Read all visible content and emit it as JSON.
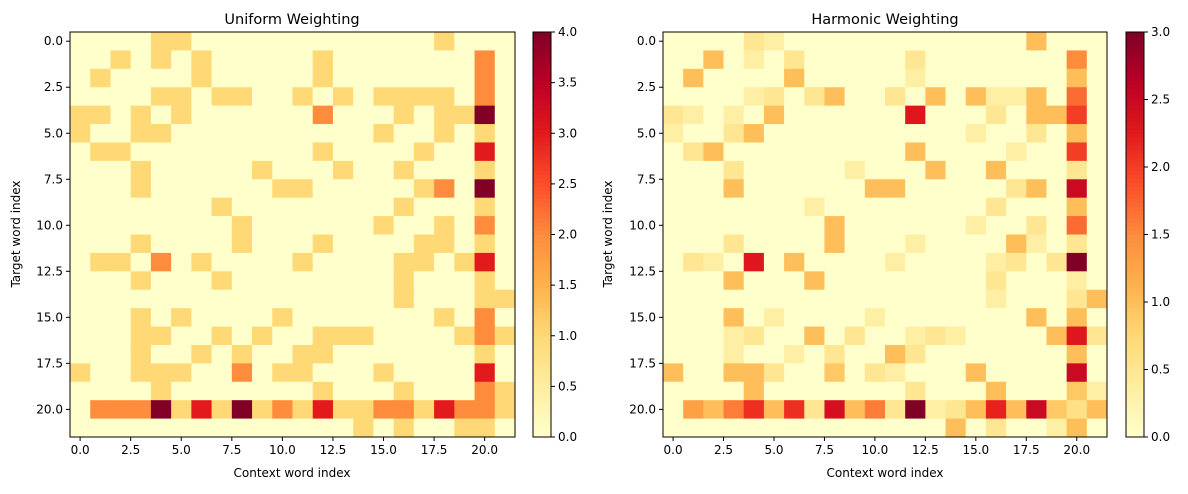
{
  "chart_data": [
    {
      "type": "heatmap",
      "title": "Uniform Weighting",
      "xlabel": "Context word index",
      "ylabel": "Target word index",
      "xticks": [
        0,
        2.5,
        5,
        7.5,
        10,
        12.5,
        15,
        17.5,
        20
      ],
      "yticks": [
        0,
        2.5,
        5,
        7.5,
        10,
        12.5,
        15,
        17.5,
        20
      ],
      "colormap": "YlOrRd",
      "vmin": 0,
      "vmax": 4,
      "colorbar_ticks": [
        0,
        0.5,
        1,
        1.5,
        2,
        2.5,
        3,
        3.5,
        4
      ],
      "cells": [
        {
          "row": 0,
          "vals": {
            "4": 1,
            "5": 1,
            "18": 1
          }
        },
        {
          "row": 1,
          "vals": {
            "2": 1,
            "4": 1,
            "6": 1,
            "12": 1,
            "20": 2
          }
        },
        {
          "row": 2,
          "vals": {
            "1": 1,
            "6": 1,
            "12": 1,
            "20": 2
          }
        },
        {
          "row": 3,
          "vals": {
            "4": 1,
            "5": 1,
            "7": 1,
            "8": 1,
            "11": 1,
            "13": 1,
            "15": 1,
            "16": 1,
            "17": 1,
            "18": 1,
            "20": 2
          }
        },
        {
          "row": 4,
          "vals": {
            "0": 1,
            "1": 1,
            "3": 1,
            "5": 1,
            "12": 2,
            "16": 1,
            "18": 1,
            "19": 1,
            "20": 4
          }
        },
        {
          "row": 5,
          "vals": {
            "0": 1,
            "3": 1,
            "4": 1,
            "15": 1,
            "18": 1,
            "20": 1
          }
        },
        {
          "row": 6,
          "vals": {
            "1": 1,
            "2": 1,
            "12": 1,
            "17": 1,
            "20": 3
          }
        },
        {
          "row": 7,
          "vals": {
            "3": 1,
            "9": 1,
            "13": 1,
            "16": 1,
            "20": 1
          }
        },
        {
          "row": 8,
          "vals": {
            "3": 1,
            "10": 1,
            "11": 1,
            "17": 1,
            "18": 2,
            "20": 4
          }
        },
        {
          "row": 9,
          "vals": {
            "7": 1,
            "16": 1,
            "20": 1
          }
        },
        {
          "row": 10,
          "vals": {
            "8": 1,
            "15": 1,
            "18": 1,
            "20": 2
          }
        },
        {
          "row": 11,
          "vals": {
            "3": 1,
            "8": 1,
            "12": 1,
            "17": 1,
            "18": 1,
            "20": 1
          }
        },
        {
          "row": 12,
          "vals": {
            "1": 1,
            "2": 1,
            "4": 2,
            "6": 1,
            "11": 1,
            "16": 1,
            "17": 1,
            "19": 1,
            "20": 3
          }
        },
        {
          "row": 13,
          "vals": {
            "3": 1,
            "7": 1,
            "16": 1,
            "20": 1
          }
        },
        {
          "row": 14,
          "vals": {
            "16": 1,
            "20": 1,
            "21": 1
          }
        },
        {
          "row": 15,
          "vals": {
            "3": 1,
            "5": 1,
            "10": 1,
            "18": 1,
            "20": 2
          }
        },
        {
          "row": 16,
          "vals": {
            "3": 1,
            "4": 1,
            "7": 1,
            "9": 1,
            "12": 1,
            "13": 1,
            "14": 1,
            "19": 1,
            "20": 2,
            "21": 1
          }
        },
        {
          "row": 17,
          "vals": {
            "3": 1,
            "6": 1,
            "8": 1,
            "11": 1,
            "12": 1,
            "20": 1
          }
        },
        {
          "row": 18,
          "vals": {
            "0": 1,
            "3": 1,
            "4": 1,
            "5": 1,
            "8": 2,
            "10": 1,
            "11": 1,
            "15": 1,
            "20": 3
          }
        },
        {
          "row": 19,
          "vals": {
            "4": 1,
            "12": 1,
            "16": 1,
            "20": 2,
            "21": 1
          }
        },
        {
          "row": 20,
          "vals": {
            "1": 2,
            "2": 2,
            "3": 2,
            "4": 4,
            "5": 1,
            "6": 3,
            "7": 1,
            "8": 4,
            "9": 1,
            "10": 2,
            "11": 1,
            "12": 3,
            "13": 1,
            "14": 1,
            "15": 2,
            "16": 2,
            "17": 1,
            "18": 3,
            "19": 2,
            "20": 2,
            "21": 1
          }
        },
        {
          "row": 21,
          "vals": {
            "14": 1,
            "16": 1,
            "19": 1,
            "20": 1
          }
        }
      ]
    },
    {
      "type": "heatmap",
      "title": "Harmonic Weighting",
      "xlabel": "Context word index",
      "ylabel": "Target word index",
      "xticks": [
        0,
        2.5,
        5,
        7.5,
        10,
        12.5,
        15,
        17.5,
        20
      ],
      "yticks": [
        0,
        2.5,
        5,
        7.5,
        10,
        12.5,
        15,
        17.5,
        20
      ],
      "colormap": "YlOrRd",
      "vmin": 0,
      "vmax": 3,
      "colorbar_ticks": [
        0,
        0.5,
        1,
        1.5,
        2,
        2.5,
        3
      ],
      "cells": [
        {
          "row": 0,
          "vals": {
            "4": 0.5,
            "5": 0.33,
            "18": 1
          }
        },
        {
          "row": 1,
          "vals": {
            "2": 1,
            "4": 0.33,
            "6": 0.5,
            "12": 0.5,
            "20": 1.5
          }
        },
        {
          "row": 2,
          "vals": {
            "1": 1,
            "6": 1,
            "12": 0.33,
            "20": 1
          }
        },
        {
          "row": 3,
          "vals": {
            "4": 0.33,
            "5": 0.5,
            "7": 0.5,
            "8": 1,
            "11": 0.5,
            "13": 1,
            "15": 1,
            "16": 0.33,
            "17": 0.33,
            "18": 1,
            "20": 1.7
          }
        },
        {
          "row": 4,
          "vals": {
            "0": 0.5,
            "1": 0.33,
            "3": 0.33,
            "5": 1,
            "12": 2.3,
            "16": 0.5,
            "18": 1,
            "19": 1,
            "20": 2
          }
        },
        {
          "row": 5,
          "vals": {
            "0": 0.33,
            "3": 0.5,
            "4": 1,
            "15": 0.33,
            "18": 0.5,
            "20": 1
          }
        },
        {
          "row": 6,
          "vals": {
            "1": 0.5,
            "2": 1,
            "12": 1,
            "17": 0.33,
            "20": 2
          }
        },
        {
          "row": 7,
          "vals": {
            "3": 0.5,
            "9": 0.33,
            "13": 1,
            "16": 1,
            "20": 0.5
          }
        },
        {
          "row": 8,
          "vals": {
            "3": 1,
            "10": 1,
            "11": 1,
            "17": 0.5,
            "18": 1,
            "20": 2.5
          }
        },
        {
          "row": 9,
          "vals": {
            "7": 0.33,
            "16": 0.5,
            "20": 1
          }
        },
        {
          "row": 10,
          "vals": {
            "8": 1,
            "15": 0.33,
            "18": 0.5,
            "20": 1.7
          }
        },
        {
          "row": 11,
          "vals": {
            "3": 0.5,
            "8": 1,
            "12": 0.33,
            "17": 1,
            "18": 0.33,
            "20": 0.5
          }
        },
        {
          "row": 12,
          "vals": {
            "1": 0.5,
            "2": 0.33,
            "4": 2.3,
            "6": 1,
            "11": 0.33,
            "16": 0.33,
            "17": 0.5,
            "19": 0.5,
            "20": 3
          }
        },
        {
          "row": 13,
          "vals": {
            "3": 1,
            "7": 1,
            "16": 0.5,
            "20": 0.33
          }
        },
        {
          "row": 14,
          "vals": {
            "16": 0.33,
            "20": 0.5,
            "21": 1
          }
        },
        {
          "row": 15,
          "vals": {
            "3": 1,
            "5": 0.33,
            "10": 0.33,
            "18": 1,
            "20": 1
          }
        },
        {
          "row": 16,
          "vals": {
            "3": 0.33,
            "4": 0.5,
            "7": 1,
            "9": 0.5,
            "12": 0.33,
            "13": 0.5,
            "14": 0.33,
            "19": 1,
            "20": 2.3,
            "21": 0.5
          }
        },
        {
          "row": 17,
          "vals": {
            "3": 0.33,
            "6": 0.33,
            "8": 0.5,
            "11": 1,
            "12": 0.5,
            "20": 1
          }
        },
        {
          "row": 18,
          "vals": {
            "0": 1,
            "3": 1,
            "4": 1,
            "5": 0.5,
            "8": 0.9,
            "10": 0.5,
            "11": 0.33,
            "15": 1,
            "20": 2.5
          }
        },
        {
          "row": 19,
          "vals": {
            "4": 1,
            "12": 0.5,
            "16": 1,
            "20": 0.9,
            "21": 0.33
          }
        },
        {
          "row": 20,
          "vals": {
            "1": 1.3,
            "2": 1,
            "3": 1.6,
            "4": 2.1,
            "5": 1,
            "6": 2.1,
            "7": 0.5,
            "8": 2.4,
            "9": 1,
            "10": 1.6,
            "11": 0.5,
            "12": 3,
            "13": 0.33,
            "14": 0.5,
            "15": 1,
            "16": 2.2,
            "17": 1,
            "18": 2.5,
            "19": 0.9,
            "20": 0.6,
            "21": 1
          }
        },
        {
          "row": 21,
          "vals": {
            "14": 1,
            "16": 0.5,
            "19": 0.33,
            "20": 1
          }
        }
      ]
    }
  ]
}
